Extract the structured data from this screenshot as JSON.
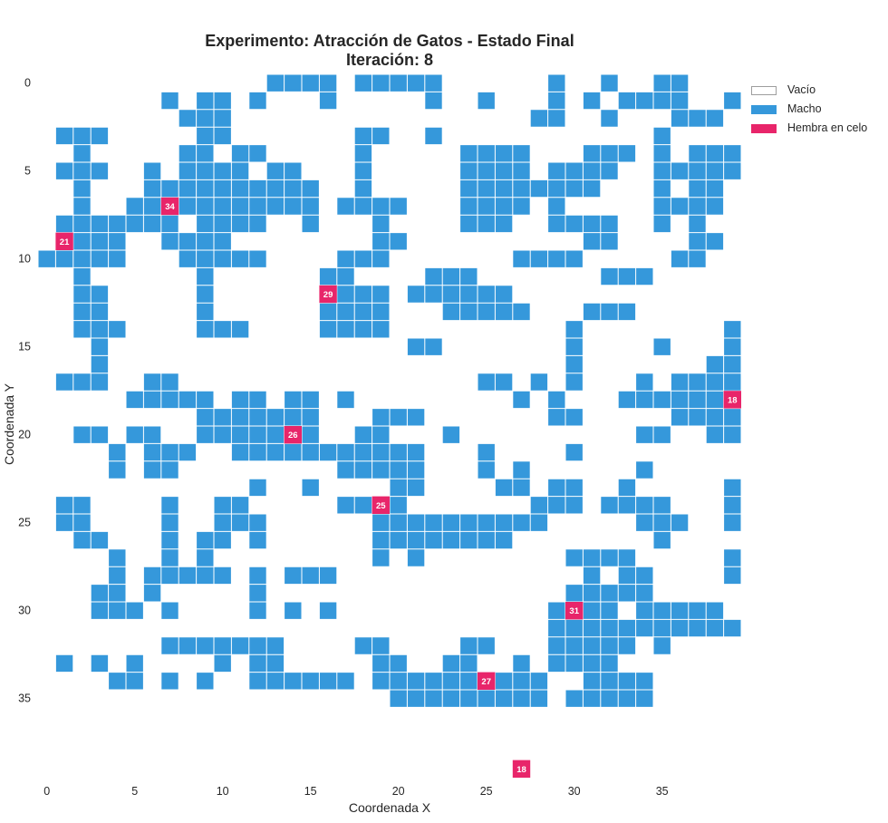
{
  "chart_data": {
    "type": "heatmap",
    "title": "Experimento: Atracción de Gatos - Estado Final",
    "subtitle": "Iteración: 8",
    "xlabel": "Coordenada X",
    "ylabel": "Coordenada Y",
    "xlim": [
      0,
      39
    ],
    "ylim": [
      0,
      39
    ],
    "y_inverted": true,
    "xticks": [
      0,
      5,
      10,
      15,
      20,
      25,
      30,
      35
    ],
    "yticks": [
      0,
      5,
      10,
      15,
      20,
      25,
      30,
      35
    ],
    "grid": true,
    "legend_position": "top-right",
    "legend": [
      {
        "label": "Vacío",
        "color": "#ffffff",
        "border": "#9e9e9e"
      },
      {
        "label": "Macho",
        "color": "#3598db"
      },
      {
        "label": "Hembra en celo",
        "color": "#e8256a"
      }
    ],
    "colors": {
      "empty": "#ffffff",
      "male": "#3598db",
      "female": "#e8256a",
      "grid_line": "#ffffff"
    },
    "value_legend": {
      "0": "Vacío",
      "1": "Macho",
      "2": "Hembra en celo"
    },
    "grid_rows": [
      "0000000000000111101111100000010010011000",
      "0000000101101000100000100100010101111001",
      "0000000011100000000000000000110010001110",
      "0111000001100000001100100000000000010000",
      "0010000011011000001000001111000111010111",
      "0111001011110110001000001111011110011111",
      "0010001111111111001000001111111100010110",
      "0010011111111111011110001111010000011110",
      "0111111101111001000100001110011110010100",
      "0211100111100000000110000000000110000110",
      "1111100011111000011100000001111000001100",
      "0010000001000000110000111000000011100000",
      "0011000001000000111201111110000000000000",
      "0011000001000000111100011111000111000000",
      "0011100001110000111100000000001000000001",
      "0001000000000000000001100000001000010001",
      "0001000000000000000000000000001000000011",
      "0111001100000000000000000110101000101111",
      "0000011111011011010000000001010001111111",
      "0000000001111111000111000000011000001111",
      "0011011001111111001100010000000000110011",
      "0000101110011111111111000100001000000000",
      "0000101100000000011111000101000000100000",
      "0000000000001001000011000011011001000001",
      "0110000100110000011110000000111011110001",
      "0110000100111000000111111111100000111001",
      "0011000101101000000111111110000000010000",
      "0000100101000000000101000000001111000001",
      "0000101111101011100000000000000101100001",
      "0001101000001000000000000000001111100000",
      "0001110100001010100000000000011110111110",
      "0000000000000000000000000000011111111111",
      "0000000111111100001100001100011111010000",
      "0101010000101100000110011001011110000000",
      "0000110101001111110111111111100111100000",
      "0000000000000000000011111111101111100000",
      "0000000000000000000000000000000000000000",
      "0000000000000000000000000000000000000000",
      "0000000000000000000000000000000000000000",
      "0000000000000000000000000000000000000000"
    ],
    "females": [
      {
        "x": 7,
        "y": 7,
        "label": "34"
      },
      {
        "x": 1,
        "y": 9,
        "label": "21"
      },
      {
        "x": 16,
        "y": 12,
        "label": "29"
      },
      {
        "x": 39,
        "y": 18,
        "label": "18"
      },
      {
        "x": 14,
        "y": 20,
        "label": "26"
      },
      {
        "x": 19,
        "y": 24,
        "label": "25"
      },
      {
        "x": 30,
        "y": 30,
        "label": "31"
      },
      {
        "x": 25,
        "y": 34,
        "label": "27"
      },
      {
        "x": 27,
        "y": 39,
        "label": "18"
      }
    ]
  }
}
